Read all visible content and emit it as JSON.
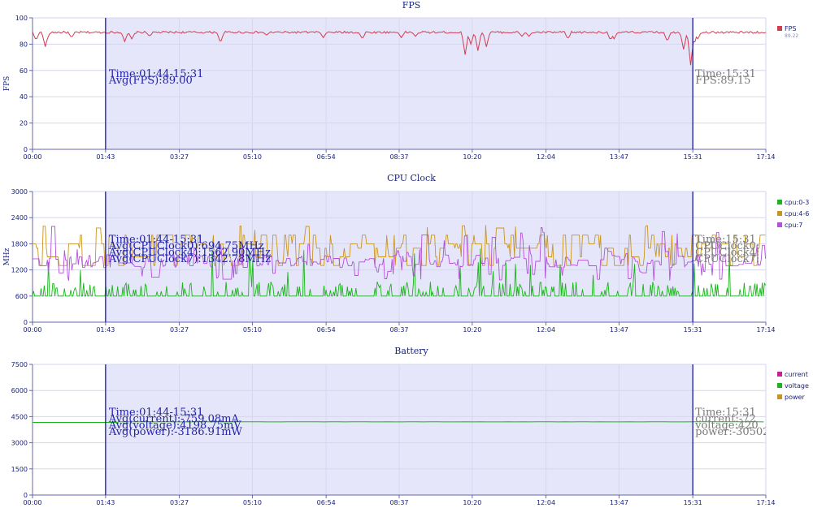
{
  "chart_data": [
    {
      "type": "line",
      "title": "FPS",
      "ylabel": "FPS",
      "ylim": [
        0,
        100
      ],
      "yticks": [
        0,
        20,
        40,
        60,
        80,
        100
      ],
      "xticks": [
        "00:00",
        "01:43",
        "03:27",
        "05:10",
        "06:54",
        "08:37",
        "10:20",
        "12:04",
        "13:47",
        "15:31",
        "17:14"
      ],
      "xlim_seconds": [
        0,
        1034
      ],
      "selection": {
        "start": "01:43",
        "end": "15:31"
      },
      "annotation_left": [
        "Time:01:44-15:31",
        "Avg(FPS):89.00"
      ],
      "annotation_right": [
        "Time:15:31",
        "FPS:89.15"
      ],
      "legend_placement": "top-right",
      "series": [
        {
          "name": "FPS",
          "legend_value": "89.22",
          "color": "#d23c50",
          "baseline": 89,
          "dips": [
            [
              5,
              83
            ],
            [
              18,
              78
            ],
            [
              20,
              83
            ],
            [
              55,
              85
            ],
            [
              130,
              82
            ],
            [
              140,
              84
            ],
            [
              165,
              86
            ],
            [
              265,
              81
            ],
            [
              330,
              87
            ],
            [
              410,
              85
            ],
            [
              465,
              84
            ],
            [
              520,
              85
            ],
            [
              540,
              86
            ],
            [
              610,
              72
            ],
            [
              618,
              80
            ],
            [
              628,
              75
            ],
            [
              640,
              78
            ],
            [
              690,
              86
            ],
            [
              700,
              86
            ],
            [
              755,
              84
            ],
            [
              815,
              83
            ],
            [
              820,
              84
            ],
            [
              895,
              82
            ],
            [
              918,
              76
            ],
            [
              928,
              64
            ],
            [
              933,
              80
            ],
            [
              938,
              84
            ]
          ]
        }
      ]
    },
    {
      "type": "line",
      "title": "CPU Clock",
      "ylabel": "MHz",
      "ylim": [
        0,
        3000
      ],
      "yticks": [
        0,
        600,
        1200,
        1800,
        2400,
        3000
      ],
      "xticks": [
        "00:00",
        "01:43",
        "03:27",
        "05:10",
        "06:54",
        "08:37",
        "10:20",
        "12:04",
        "13:47",
        "15:31",
        "17:14"
      ],
      "xlim_seconds": [
        0,
        1034
      ],
      "selection": {
        "start": "01:43",
        "end": "15:31"
      },
      "annotation_left": [
        "Time:01:44-15:31",
        "Avg(CPUClock0):694.75MHz",
        "Avg(CPUClock4):1562.90MHz",
        "Avg(CPUClock7):1342.78MHz"
      ],
      "annotation_right": [
        "Time:15:31",
        "CPUClock0:",
        "CPUClock4:",
        "CPUClock7:"
      ],
      "legend_placement": "top-right",
      "series": [
        {
          "name": "cpu:0-3",
          "color": "#1cb41c",
          "base": 600,
          "range": [
            600,
            1800
          ]
        },
        {
          "name": "cpu:4-6",
          "color": "#c8961e",
          "base": 1800,
          "range": [
            1300,
            2200
          ]
        },
        {
          "name": "cpu:7",
          "color": "#b450dc",
          "base": 1350,
          "range": [
            900,
            2300
          ]
        }
      ]
    },
    {
      "type": "line",
      "title": "Battery",
      "ylabel": "",
      "ylim": [
        0,
        7500
      ],
      "yticks": [
        0,
        1500,
        3000,
        4500,
        6000,
        7500
      ],
      "xticks": [
        "00:00",
        "01:43",
        "03:27",
        "05:10",
        "06:54",
        "08:37",
        "10:20",
        "12:04",
        "13:47",
        "15:31",
        "17:14"
      ],
      "xlim_seconds": [
        0,
        1034
      ],
      "selection": {
        "start": "01:43",
        "end": "15:31"
      },
      "annotation_left": [
        "Time:01:44-15:31",
        "Avg(current):-759.08mA",
        "Avg(voltage):4198.75mV",
        "Avg(power):-3186.91mW"
      ],
      "annotation_right": [
        "Time:15:31",
        "current:-72",
        "voltage:420",
        "power:-30502"
      ],
      "legend_placement": "top-right",
      "series": [
        {
          "name": "current",
          "color": "#c81e96",
          "values": []
        },
        {
          "name": "voltage",
          "color": "#1cb41c",
          "start": 4170,
          "value": 4200
        },
        {
          "name": "power",
          "color": "#c8961e",
          "values": []
        }
      ]
    }
  ]
}
